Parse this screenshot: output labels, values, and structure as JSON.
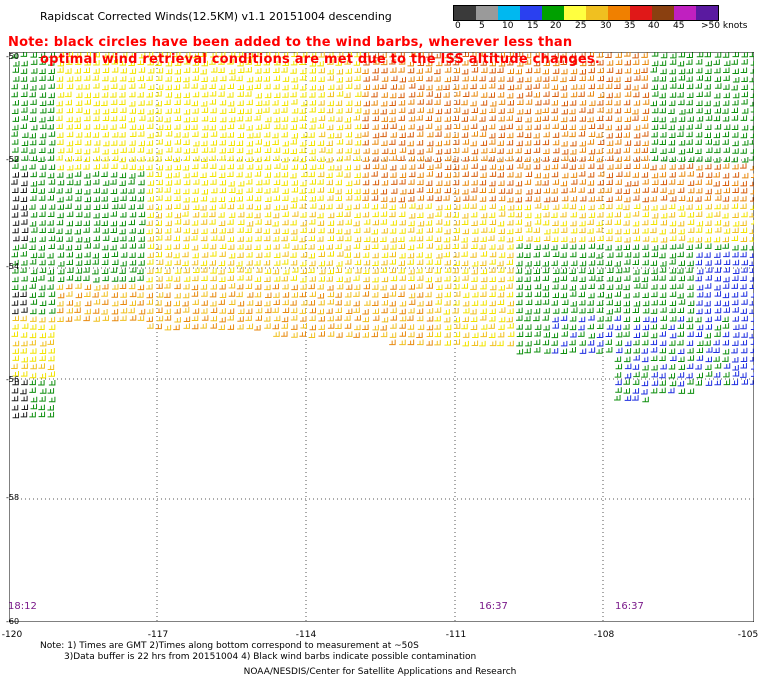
{
  "title": "Rapidscat Corrected Winds(12.5KM) v1.1 20151004 descending",
  "legend": {
    "labels": [
      "0",
      "5",
      "10",
      "15",
      "20",
      "25",
      "30",
      "35",
      "40",
      "45",
      ">50 knots"
    ],
    "colors": [
      "#3a3a3a",
      "#9a9a9a",
      "#00b8f0",
      "#2a40f0",
      "#00a000",
      "#ffff40",
      "#f0c020",
      "#f08000",
      "#e01818",
      "#8a4010",
      "#c020c0",
      "#5a1aa0"
    ]
  },
  "note": {
    "line1": "Note: black circles have been added to the wind barbs, wherever less than",
    "line2": "optimal wind retrieval conditions are met due to the ISS altitude changes."
  },
  "lat_labels": [
    "-50",
    "-52",
    "-54",
    "-56",
    "-58",
    "-60"
  ],
  "lon_labels": [
    "-120",
    "-117",
    "-114",
    "-111",
    "-108",
    "-105"
  ],
  "times": [
    "18:12",
    "16:37",
    "16:37"
  ],
  "footer": {
    "line1": "Note: 1) Times are GMT 2)Times along bottom correspond to measurement at ~50S",
    "line2": "3)Data buffer is 22 hrs from 20151004 4) Black wind barbs indicate possible contamination",
    "line3": "NOAA/NESDIS/Center for Satellite Applications and Research"
  }
}
